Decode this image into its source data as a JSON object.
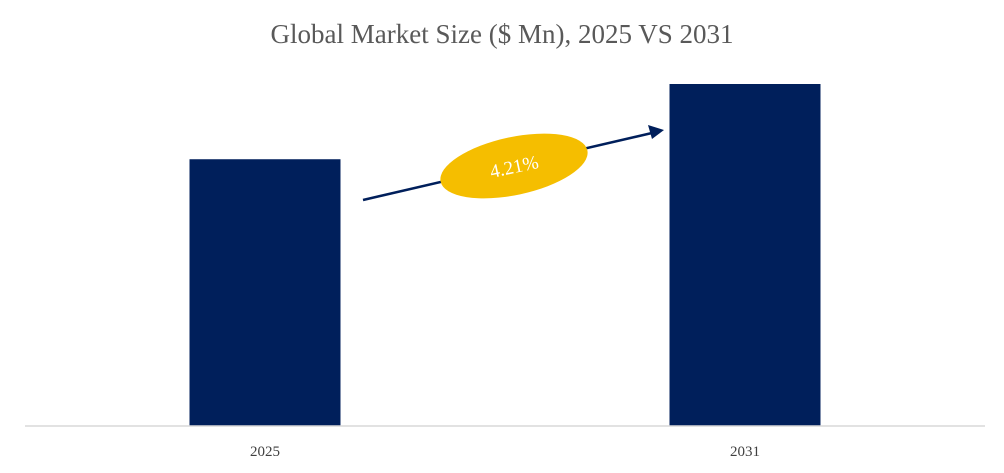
{
  "chart_data": {
    "type": "bar",
    "title": "Global Market Size ($ Mn), 2025 VS 2031",
    "xlabel": "",
    "ylabel": "",
    "categories": [
      "2025",
      "2031"
    ],
    "values": [
      0.78,
      1.0
    ],
    "bar_color": "#001f5b",
    "axis_color": "#d9d9d9",
    "grid": false,
    "annotation": {
      "text": "4.21%",
      "type": "cagr-arrow",
      "from": "2025",
      "to": "2031",
      "ellipse_color": "#f5be00",
      "arrow_color": "#001f5b"
    }
  }
}
